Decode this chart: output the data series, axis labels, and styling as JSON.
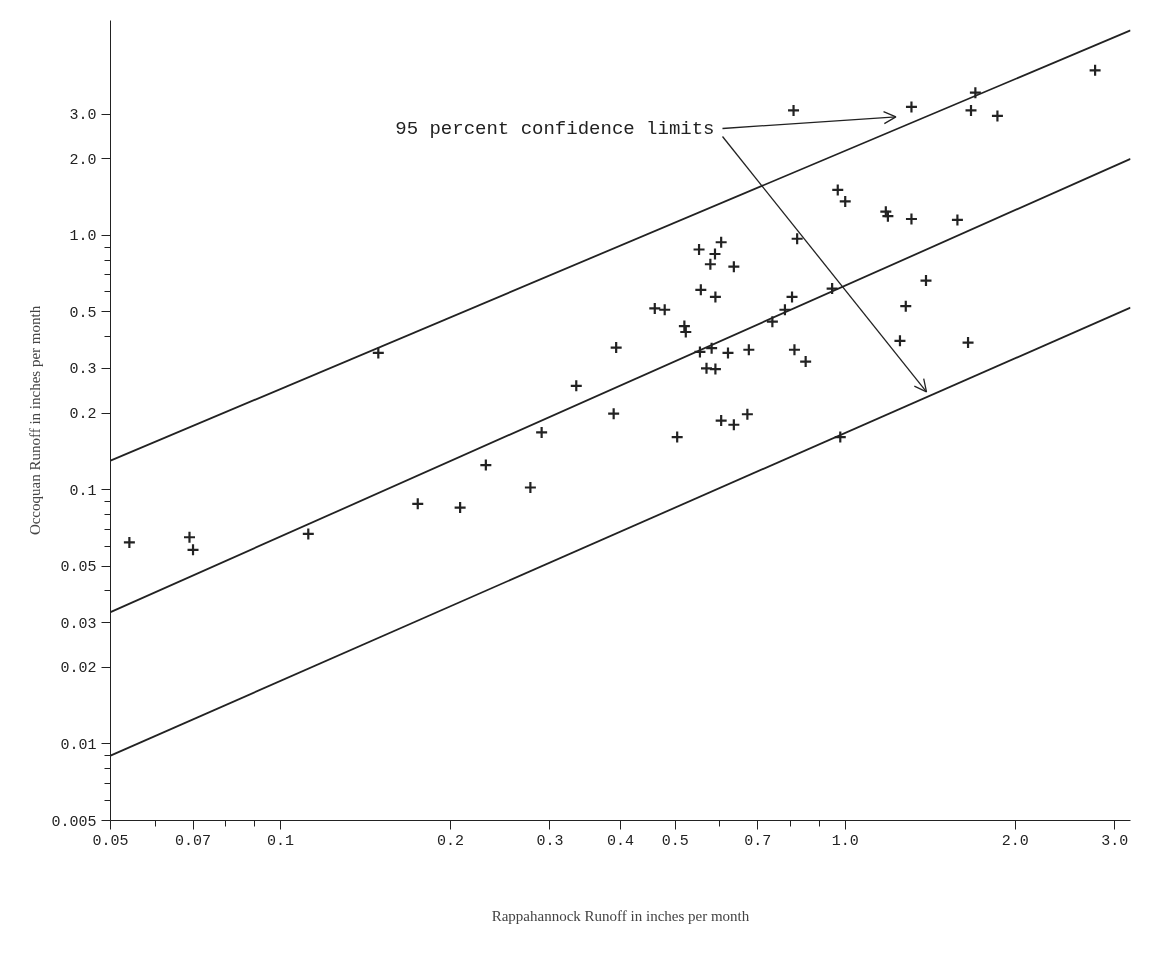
{
  "chart_data": {
    "type": "scatter",
    "xlabel": "Rappahannock Runoff in inches per month",
    "ylabel": "Occoquan Runoff in inches per month",
    "log": "xy",
    "grid": false,
    "xlim": [
      0.05,
      3.2
    ],
    "ylim": [
      0.005,
      7
    ],
    "xticks": [
      {
        "value": 0.05,
        "label": "0.05"
      },
      {
        "value": 0.06,
        "label": null
      },
      {
        "value": 0.07,
        "label": "0.07"
      },
      {
        "value": 0.08,
        "label": null
      },
      {
        "value": 0.09,
        "label": null
      },
      {
        "value": 0.1,
        "label": "0.1"
      },
      {
        "value": 0.2,
        "label": "0.2"
      },
      {
        "value": 0.3,
        "label": "0.3"
      },
      {
        "value": 0.4,
        "label": "0.4"
      },
      {
        "value": 0.5,
        "label": "0.5"
      },
      {
        "value": 0.6,
        "label": null
      },
      {
        "value": 0.7,
        "label": "0.7"
      },
      {
        "value": 0.8,
        "label": null
      },
      {
        "value": 0.9,
        "label": null
      },
      {
        "value": 1,
        "label": "1.0"
      },
      {
        "value": 2,
        "label": "2.0"
      },
      {
        "value": 3,
        "label": "3.0"
      }
    ],
    "yticks": [
      {
        "value": 0.005,
        "label": "0.005"
      },
      {
        "value": 0.006,
        "label": null
      },
      {
        "value": 0.007,
        "label": null
      },
      {
        "value": 0.008,
        "label": null
      },
      {
        "value": 0.009,
        "label": null
      },
      {
        "value": 0.01,
        "label": "0.01"
      },
      {
        "value": 0.02,
        "label": "0.02"
      },
      {
        "value": 0.03,
        "label": "0.03"
      },
      {
        "value": 0.04,
        "label": null
      },
      {
        "value": 0.05,
        "label": "0.05"
      },
      {
        "value": 0.06,
        "label": null
      },
      {
        "value": 0.07,
        "label": null
      },
      {
        "value": 0.08,
        "label": null
      },
      {
        "value": 0.09,
        "label": null
      },
      {
        "value": 0.1,
        "label": "0.1"
      },
      {
        "value": 0.2,
        "label": "0.2"
      },
      {
        "value": 0.3,
        "label": "0.3"
      },
      {
        "value": 0.4,
        "label": null
      },
      {
        "value": 0.5,
        "label": "0.5"
      },
      {
        "value": 0.6,
        "label": null
      },
      {
        "value": 0.7,
        "label": null
      },
      {
        "value": 0.8,
        "label": null
      },
      {
        "value": 0.9,
        "label": null
      },
      {
        "value": 1,
        "label": "1.0"
      },
      {
        "value": 2,
        "label": "2.0"
      },
      {
        "value": 3,
        "label": "3.0"
      }
    ],
    "annotations": [
      "95 percent confidence limits"
    ],
    "series": [
      {
        "marker": "cross",
        "color": "#222222",
        "x": [
          0.054,
          0.069,
          0.07,
          0.112,
          0.149,
          0.175,
          0.208,
          0.231,
          0.277,
          0.29,
          0.334,
          0.389,
          0.393,
          0.46,
          0.479,
          0.519,
          0.522,
          0.504,
          0.551,
          0.588,
          0.603,
          0.577,
          0.635,
          0.555,
          0.589,
          0.553,
          0.58,
          0.62,
          0.675,
          0.568,
          0.589,
          0.603,
          0.635,
          0.671,
          0.743,
          0.782,
          0.805,
          0.822,
          0.813,
          0.851,
          0.81,
          1.31,
          1.7,
          1.67,
          1.86,
          2.77,
          0.97,
          1.0,
          1.18,
          1.19,
          1.31,
          1.58,
          0.948,
          1.39,
          1.28,
          1.25,
          1.65,
          0.98
        ],
        "values": [
          0.062,
          0.065,
          0.058,
          0.067,
          0.345,
          0.088,
          0.085,
          0.125,
          0.102,
          0.168,
          0.256,
          0.199,
          0.362,
          0.516,
          0.51,
          0.44,
          0.417,
          0.161,
          0.88,
          0.845,
          0.94,
          0.77,
          0.753,
          0.611,
          0.573,
          0.348,
          0.36,
          0.345,
          0.355,
          0.3,
          0.298,
          0.187,
          0.18,
          0.198,
          0.458,
          0.51,
          0.573,
          0.97,
          0.355,
          0.319,
          3.1,
          3.2,
          3.64,
          3.1,
          2.95,
          4.46,
          1.51,
          1.36,
          1.24,
          1.19,
          1.16,
          1.15,
          0.618,
          0.664,
          0.527,
          0.385,
          0.379,
          0.161
        ]
      },
      {
        "type": "line",
        "color": "#222222",
        "x": [
          0.05,
          3.2
        ],
        "values": [
          0.13,
          6.4
        ]
      },
      {
        "type": "line",
        "color": "#222222",
        "x": [
          0.05,
          3.2
        ],
        "values": [
          0.033,
          2.0
        ]
      },
      {
        "type": "line",
        "color": "#222222",
        "x": [
          0.05,
          3.2
        ],
        "values": [
          0.009,
          0.52
        ]
      }
    ]
  }
}
